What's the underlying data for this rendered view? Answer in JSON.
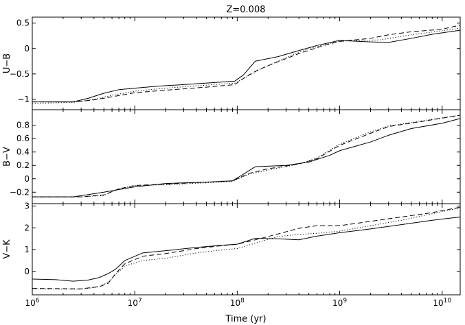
{
  "chart_data": {
    "type": "line",
    "title": "Z=0.008",
    "xlabel": "Time (yr)",
    "x_scale": "log",
    "xlim": [
      1000000,
      15000000000
    ],
    "x_ticks": [
      {
        "value": 1000000,
        "base": "10",
        "exp": "6"
      },
      {
        "value": 10000000,
        "base": "10",
        "exp": "7"
      },
      {
        "value": 100000000,
        "base": "10",
        "exp": "8"
      },
      {
        "value": 1000000000,
        "base": "10",
        "exp": "9"
      },
      {
        "value": 10000000000,
        "base": "10",
        "exp": "10"
      }
    ],
    "line_color": "#000000",
    "panels": [
      {
        "ylabel": "U−B",
        "ylim": [
          -1.15,
          0.55
        ],
        "yticks": [
          -1,
          -0.5,
          0,
          0.5
        ],
        "ytick_labels": [
          "−1",
          "−0.5",
          "0",
          "0.5"
        ],
        "series": [
          {
            "style": "solid",
            "points": [
              [
                1000000,
                -1.05
              ],
              [
                2500000,
                -1.05
              ],
              [
                3500000,
                -0.98
              ],
              [
                5000000,
                -0.88
              ],
              [
                7000000,
                -0.81
              ],
              [
                10000000,
                -0.78
              ],
              [
                17000000,
                -0.74
              ],
              [
                30000000,
                -0.71
              ],
              [
                60000000,
                -0.67
              ],
              [
                95000000,
                -0.64
              ],
              [
                115000000,
                -0.52
              ],
              [
                150000000,
                -0.25
              ],
              [
                250000000,
                -0.16
              ],
              [
                400000000,
                -0.04
              ],
              [
                600000000,
                0.06
              ],
              [
                1000000000,
                0.16
              ],
              [
                2000000000,
                0.13
              ],
              [
                3000000000,
                0.12
              ],
              [
                5000000000,
                0.2
              ],
              [
                8000000000,
                0.28
              ],
              [
                15000000000,
                0.36
              ]
            ]
          },
          {
            "style": "dashed",
            "points": [
              [
                1000000,
                -1.05
              ],
              [
                2700000,
                -1.05
              ],
              [
                4000000,
                -1.01
              ],
              [
                6000000,
                -0.95
              ],
              [
                10000000,
                -0.87
              ],
              [
                20000000,
                -0.82
              ],
              [
                50000000,
                -0.76
              ],
              [
                95000000,
                -0.71
              ],
              [
                120000000,
                -0.56
              ],
              [
                160000000,
                -0.42
              ],
              [
                250000000,
                -0.26
              ],
              [
                400000000,
                -0.1
              ],
              [
                700000000,
                0.06
              ],
              [
                1000000000,
                0.14
              ],
              [
                2000000000,
                0.2
              ],
              [
                3000000000,
                0.27
              ],
              [
                5000000000,
                0.33
              ],
              [
                10000000000,
                0.38
              ],
              [
                15000000000,
                0.46
              ]
            ]
          },
          {
            "style": "dotted",
            "points": [
              [
                1000000,
                -1.08
              ],
              [
                2500000,
                -1.06
              ],
              [
                4000000,
                -1.0
              ],
              [
                6000000,
                -0.92
              ],
              [
                10000000,
                -0.84
              ],
              [
                20000000,
                -0.78
              ],
              [
                50000000,
                -0.72
              ],
              [
                95000000,
                -0.68
              ],
              [
                120000000,
                -0.57
              ],
              [
                170000000,
                -0.4
              ],
              [
                300000000,
                -0.18
              ],
              [
                500000000,
                0.0
              ],
              [
                800000000,
                0.1
              ],
              [
                1000000000,
                0.14
              ],
              [
                1500000000,
                0.16
              ],
              [
                2500000000,
                0.17
              ],
              [
                5000000000,
                0.27
              ],
              [
                10000000000,
                0.35
              ],
              [
                15000000000,
                0.4
              ]
            ]
          }
        ]
      },
      {
        "ylabel": "B−V",
        "ylim": [
          -0.32,
          0.95
        ],
        "yticks": [
          -0.2,
          0,
          0.2,
          0.4,
          0.6,
          0.8
        ],
        "ytick_labels": [
          "−0.2",
          "0",
          "0.2",
          "0.4",
          "0.6",
          "0.8"
        ],
        "series": [
          {
            "style": "solid",
            "points": [
              [
                1000000,
                -0.27
              ],
              [
                2500000,
                -0.27
              ],
              [
                5000000,
                -0.2
              ],
              [
                10000000,
                -0.12
              ],
              [
                20000000,
                -0.07
              ],
              [
                50000000,
                -0.05
              ],
              [
                90000000,
                -0.03
              ],
              [
                110000000,
                0.05
              ],
              [
                150000000,
                0.18
              ],
              [
                300000000,
                0.2
              ],
              [
                500000000,
                0.25
              ],
              [
                800000000,
                0.35
              ],
              [
                1000000000,
                0.42
              ],
              [
                2000000000,
                0.55
              ],
              [
                3000000000,
                0.65
              ],
              [
                5000000000,
                0.75
              ],
              [
                10000000000,
                0.83
              ],
              [
                15000000000,
                0.9
              ]
            ]
          },
          {
            "style": "dashed",
            "points": [
              [
                1000000,
                -0.27
              ],
              [
                3000000,
                -0.27
              ],
              [
                5000000,
                -0.24
              ],
              [
                7000000,
                -0.15
              ],
              [
                10000000,
                -0.1
              ],
              [
                20000000,
                -0.08
              ],
              [
                50000000,
                -0.05
              ],
              [
                90000000,
                -0.03
              ],
              [
                130000000,
                0.08
              ],
              [
                200000000,
                0.15
              ],
              [
                400000000,
                0.22
              ],
              [
                600000000,
                0.3
              ],
              [
                1000000000,
                0.5
              ],
              [
                2000000000,
                0.68
              ],
              [
                3000000000,
                0.78
              ],
              [
                6000000000,
                0.85
              ],
              [
                15000000000,
                0.95
              ]
            ]
          },
          {
            "style": "dotted",
            "points": [
              [
                1000000,
                -0.27
              ],
              [
                3000000,
                -0.27
              ],
              [
                5000000,
                -0.25
              ],
              [
                7000000,
                -0.15
              ],
              [
                10000000,
                -0.1
              ],
              [
                20000000,
                -0.09
              ],
              [
                50000000,
                -0.06
              ],
              [
                90000000,
                -0.04
              ],
              [
                130000000,
                0.07
              ],
              [
                200000000,
                0.13
              ],
              [
                400000000,
                0.22
              ],
              [
                600000000,
                0.31
              ],
              [
                1000000000,
                0.52
              ],
              [
                2000000000,
                0.7
              ],
              [
                3000000000,
                0.79
              ],
              [
                6000000000,
                0.86
              ],
              [
                15000000000,
                0.95
              ]
            ]
          }
        ]
      },
      {
        "ylabel": "V−K",
        "ylim": [
          -0.95,
          3.05
        ],
        "yticks": [
          0,
          1,
          2,
          3
        ],
        "ytick_labels": [
          "0",
          "1",
          "2",
          "3"
        ],
        "series": [
          {
            "style": "solid",
            "points": [
              [
                1000000,
                -0.35
              ],
              [
                1700000,
                -0.38
              ],
              [
                2500000,
                -0.45
              ],
              [
                3500000,
                -0.4
              ],
              [
                4500000,
                -0.28
              ],
              [
                5500000,
                -0.1
              ],
              [
                6500000,
                0.1
              ],
              [
                8000000,
                0.5
              ],
              [
                12000000,
                0.85
              ],
              [
                20000000,
                0.95
              ],
              [
                40000000,
                1.1
              ],
              [
                70000000,
                1.2
              ],
              [
                100000000,
                1.25
              ],
              [
                150000000,
                1.52
              ],
              [
                250000000,
                1.5
              ],
              [
                400000000,
                1.45
              ],
              [
                600000000,
                1.62
              ],
              [
                1000000000,
                1.78
              ],
              [
                2000000000,
                1.95
              ],
              [
                4000000000,
                2.15
              ],
              [
                8000000000,
                2.35
              ],
              [
                15000000000,
                2.5
              ]
            ]
          },
          {
            "style": "dashed",
            "points": [
              [
                1000000,
                -0.78
              ],
              [
                3000000,
                -0.8
              ],
              [
                4500000,
                -0.7
              ],
              [
                5500000,
                -0.55
              ],
              [
                6500000,
                -0.1
              ],
              [
                8000000,
                0.35
              ],
              [
                12000000,
                0.7
              ],
              [
                20000000,
                0.82
              ],
              [
                40000000,
                1.05
              ],
              [
                70000000,
                1.18
              ],
              [
                100000000,
                1.25
              ],
              [
                150000000,
                1.45
              ],
              [
                250000000,
                1.72
              ],
              [
                400000000,
                1.98
              ],
              [
                600000000,
                2.1
              ],
              [
                1000000000,
                2.1
              ],
              [
                2000000000,
                2.3
              ],
              [
                4000000000,
                2.5
              ],
              [
                8000000000,
                2.7
              ],
              [
                15000000000,
                2.95
              ]
            ]
          },
          {
            "style": "dotted",
            "points": [
              [
                1000000,
                -0.8
              ],
              [
                3000000,
                -0.82
              ],
              [
                4500000,
                -0.7
              ],
              [
                5500000,
                -0.5
              ],
              [
                6500000,
                -0.15
              ],
              [
                8000000,
                0.25
              ],
              [
                12000000,
                0.5
              ],
              [
                20000000,
                0.6
              ],
              [
                40000000,
                0.85
              ],
              [
                70000000,
                0.98
              ],
              [
                100000000,
                1.05
              ],
              [
                150000000,
                1.3
              ],
              [
                250000000,
                1.6
              ],
              [
                400000000,
                1.7
              ],
              [
                600000000,
                1.75
              ],
              [
                1000000000,
                1.85
              ],
              [
                2000000000,
                2.1
              ],
              [
                4000000000,
                2.35
              ],
              [
                8000000000,
                2.65
              ],
              [
                15000000000,
                2.92
              ]
            ]
          }
        ]
      }
    ]
  }
}
